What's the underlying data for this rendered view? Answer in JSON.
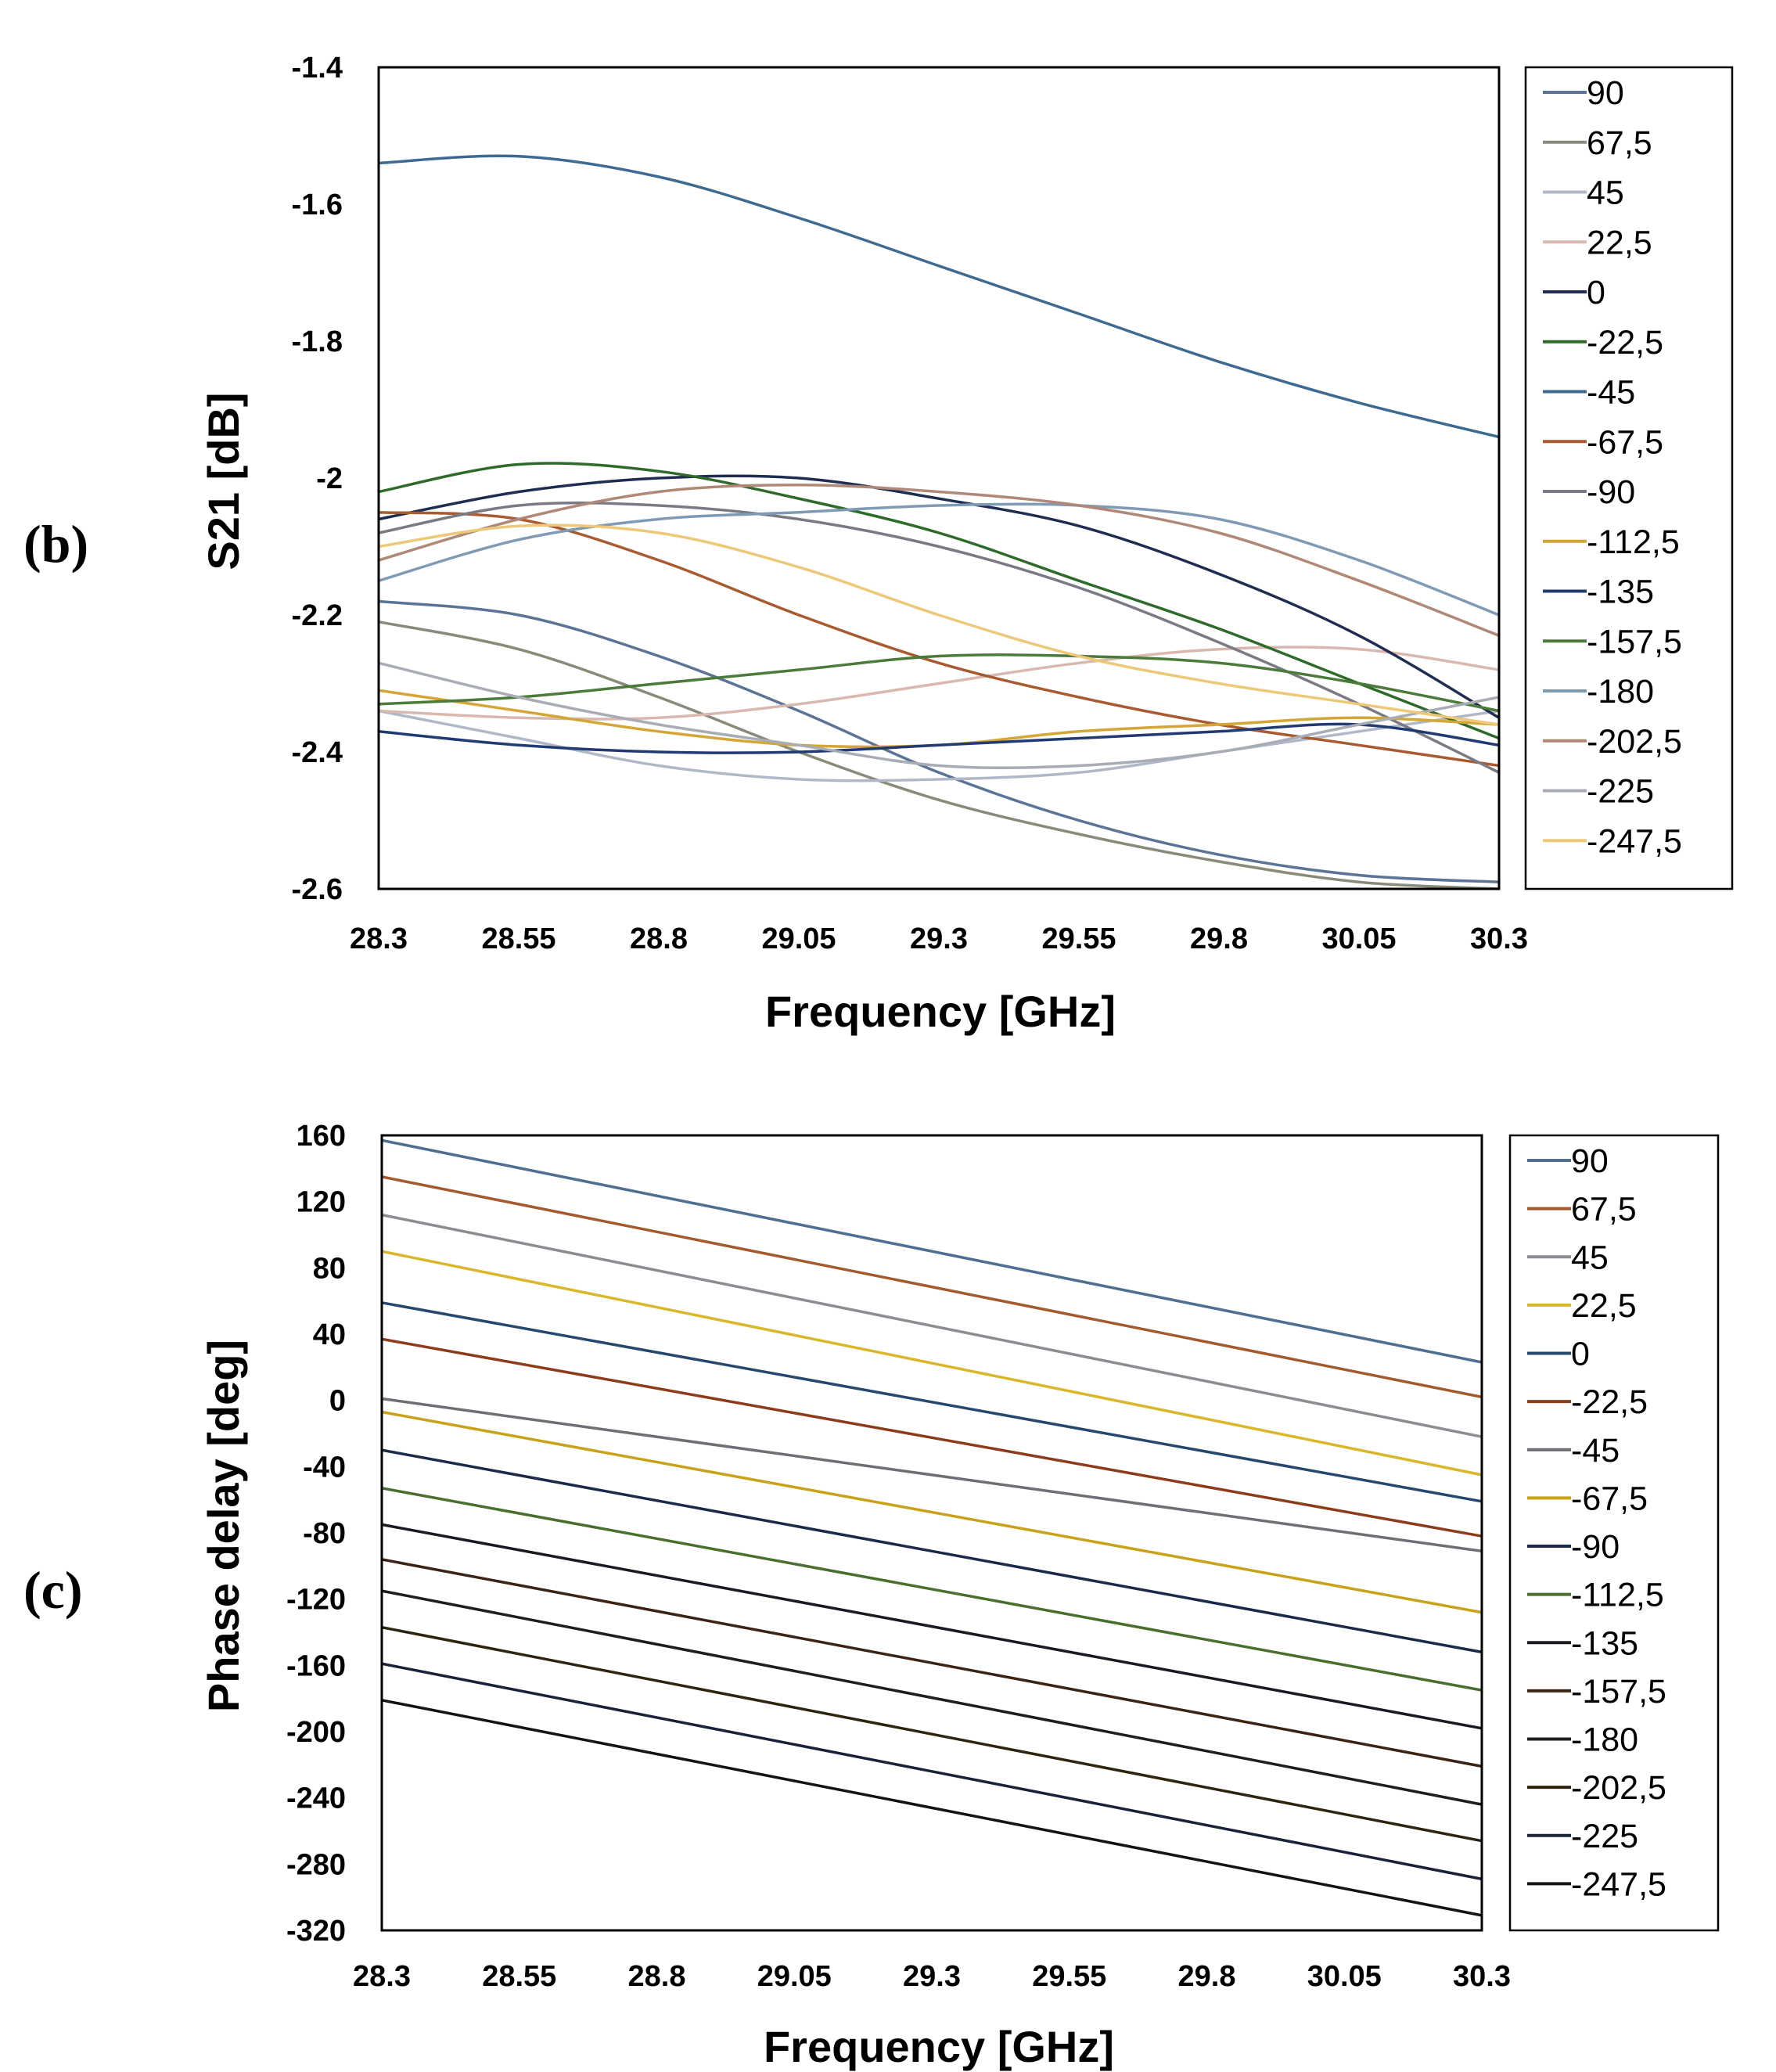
{
  "chart_data": [
    {
      "type": "line",
      "panel_label": "(b)",
      "xlabel": "Frequency [GHz]",
      "ylabel": "S21 [dB]",
      "xlim": [
        28.3,
        30.3
      ],
      "ylim": [
        -2.6,
        -1.4
      ],
      "x_ticks": [
        28.3,
        28.55,
        28.8,
        29.05,
        29.3,
        29.55,
        29.8,
        30.05,
        30.3
      ],
      "x_tick_labels": [
        "28.3",
        "28.55",
        "28.8",
        "29.05",
        "29.3",
        "29.55",
        "29.8",
        "30.05",
        "30.3"
      ],
      "y_ticks": [
        -1.4,
        -1.6,
        -1.8,
        -2,
        -2.2,
        -2.4,
        -2.6
      ],
      "y_tick_labels": [
        "-1.4",
        "-1.6",
        "-1.8",
        "-2",
        "-2.2",
        "-2.4",
        "-2.6"
      ],
      "grid": false,
      "legend_position": "right",
      "x": [
        28.3,
        28.55,
        28.8,
        29.05,
        29.3,
        29.55,
        29.8,
        30.05,
        30.3
      ],
      "series": [
        {
          "name": "90",
          "color": "#5a7396",
          "values": [
            -2.18,
            -2.2,
            -2.26,
            -2.34,
            -2.43,
            -2.5,
            -2.55,
            -2.58,
            -2.59
          ]
        },
        {
          "name": "67,5",
          "color": "#8a8a7a",
          "values": [
            -2.21,
            -2.25,
            -2.32,
            -2.4,
            -2.47,
            -2.52,
            -2.56,
            -2.59,
            -2.6
          ]
        },
        {
          "name": "45",
          "color": "#b0b8c8",
          "values": [
            -2.34,
            -2.38,
            -2.42,
            -2.44,
            -2.44,
            -2.43,
            -2.4,
            -2.37,
            -2.34
          ]
        },
        {
          "name": "22,5",
          "color": "#d9b8b0",
          "values": [
            -2.34,
            -2.35,
            -2.35,
            -2.33,
            -2.3,
            -2.27,
            -2.25,
            -2.25,
            -2.28
          ]
        },
        {
          "name": "0",
          "color": "#1f2d52",
          "values": [
            -2.06,
            -2.02,
            -2.0,
            -2.0,
            -2.03,
            -2.07,
            -2.14,
            -2.23,
            -2.35
          ]
        },
        {
          "name": "-22,5",
          "color": "#2e6b2a",
          "values": [
            -2.02,
            -1.98,
            -1.99,
            -2.03,
            -2.08,
            -2.15,
            -2.22,
            -2.3,
            -2.38
          ]
        },
        {
          "name": "-45",
          "color": "#3e6a92",
          "values": [
            -1.54,
            -1.53,
            -1.56,
            -1.62,
            -1.69,
            -1.76,
            -1.83,
            -1.89,
            -1.94
          ]
        },
        {
          "name": "-67,5",
          "color": "#a85a30",
          "values": [
            -2.05,
            -2.06,
            -2.12,
            -2.2,
            -2.27,
            -2.32,
            -2.36,
            -2.39,
            -2.42
          ]
        },
        {
          "name": "-90",
          "color": "#7a7a84",
          "values": [
            -2.08,
            -2.04,
            -2.04,
            -2.06,
            -2.1,
            -2.16,
            -2.24,
            -2.33,
            -2.43
          ]
        },
        {
          "name": "-112,5",
          "color": "#d4a636",
          "values": [
            -2.31,
            -2.34,
            -2.37,
            -2.39,
            -2.39,
            -2.37,
            -2.36,
            -2.35,
            -2.36
          ]
        },
        {
          "name": "-135",
          "color": "#223a72",
          "values": [
            -2.37,
            -2.39,
            -2.4,
            -2.4,
            -2.39,
            -2.38,
            -2.37,
            -2.36,
            -2.39
          ]
        },
        {
          "name": "-157,5",
          "color": "#4b7a3a",
          "values": [
            -2.33,
            -2.32,
            -2.3,
            -2.28,
            -2.26,
            -2.26,
            -2.27,
            -2.3,
            -2.34
          ]
        },
        {
          "name": "-180",
          "color": "#7f9ab5",
          "values": [
            -2.15,
            -2.09,
            -2.06,
            -2.05,
            -2.04,
            -2.04,
            -2.06,
            -2.12,
            -2.2
          ]
        },
        {
          "name": "-202,5",
          "color": "#b08878",
          "values": [
            -2.12,
            -2.06,
            -2.02,
            -2.01,
            -2.02,
            -2.04,
            -2.08,
            -2.15,
            -2.23
          ]
        },
        {
          "name": "-225",
          "color": "#a8acb5",
          "values": [
            -2.27,
            -2.32,
            -2.36,
            -2.39,
            -2.42,
            -2.42,
            -2.4,
            -2.36,
            -2.32
          ]
        },
        {
          "name": "-247,5",
          "color": "#edc878",
          "values": [
            -2.1,
            -2.07,
            -2.08,
            -2.13,
            -2.2,
            -2.26,
            -2.3,
            -2.33,
            -2.36
          ]
        }
      ]
    },
    {
      "type": "line",
      "panel_label": "(c)",
      "xlabel": "Frequency [GHz]",
      "ylabel": "Phase delay [deg]",
      "xlim": [
        28.3,
        30.3
      ],
      "ylim": [
        -320,
        160
      ],
      "x_ticks": [
        28.3,
        28.55,
        28.8,
        29.05,
        29.3,
        29.55,
        29.8,
        30.05,
        30.3
      ],
      "x_tick_labels": [
        "28.3",
        "28.55",
        "28.8",
        "29.05",
        "29.3",
        "29.55",
        "29.8",
        "30.05",
        "30.3"
      ],
      "y_ticks": [
        160,
        120,
        80,
        40,
        0,
        -40,
        -80,
        -120,
        -160,
        -200,
        -240,
        -280,
        -320
      ],
      "y_tick_labels": [
        "160",
        "120",
        "80",
        "40",
        "0",
        "-40",
        "-80",
        "-120",
        "-160",
        "-200",
        "-240",
        "-280",
        "-320"
      ],
      "grid": false,
      "legend_position": "right",
      "x": [
        28.3,
        30.3
      ],
      "series": [
        {
          "name": "90",
          "color": "#4e6f92",
          "values": [
            157,
            23
          ]
        },
        {
          "name": "67,5",
          "color": "#a35a2c",
          "values": [
            135,
            2
          ]
        },
        {
          "name": "45",
          "color": "#8c8c92",
          "values": [
            112,
            -22
          ]
        },
        {
          "name": "22,5",
          "color": "#d9b62a",
          "values": [
            90,
            -45
          ]
        },
        {
          "name": "0",
          "color": "#25486e",
          "values": [
            59,
            -61
          ]
        },
        {
          "name": "-22,5",
          "color": "#8c3c1a",
          "values": [
            37,
            -82
          ]
        },
        {
          "name": "-45",
          "color": "#6e6e74",
          "values": [
            1,
            -91
          ]
        },
        {
          "name": "-67,5",
          "color": "#c8a218",
          "values": [
            -7,
            -128
          ]
        },
        {
          "name": "-90",
          "color": "#1c2a4a",
          "values": [
            -30,
            -152
          ]
        },
        {
          "name": "-112,5",
          "color": "#4a6e2c",
          "values": [
            -53,
            -175
          ]
        },
        {
          "name": "-135",
          "color": "#1a1a22",
          "values": [
            -75,
            -198
          ]
        },
        {
          "name": "-157,5",
          "color": "#3a2416",
          "values": [
            -96,
            -221
          ]
        },
        {
          "name": "-180",
          "color": "#1e1e1e",
          "values": [
            -115,
            -244
          ]
        },
        {
          "name": "-202,5",
          "color": "#2e2410",
          "values": [
            -137,
            -266
          ]
        },
        {
          "name": "-225",
          "color": "#1a2238",
          "values": [
            -159,
            -289
          ]
        },
        {
          "name": "-247,5",
          "color": "#141414",
          "values": [
            -181,
            -311
          ]
        }
      ]
    }
  ]
}
